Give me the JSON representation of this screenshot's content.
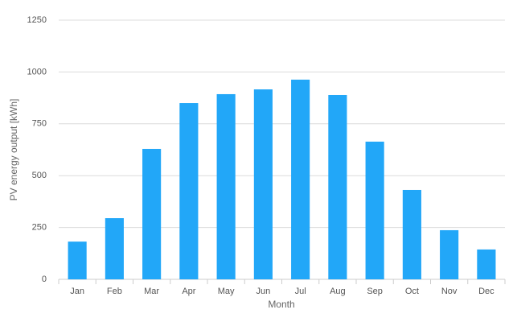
{
  "chart_data": {
    "type": "bar",
    "y_label": "PV energy output [kWh]",
    "x_label": "Month",
    "categories": [
      "Jan",
      "Feb",
      "Mar",
      "Apr",
      "May",
      "Jun",
      "Jul",
      "Aug",
      "Sep",
      "Oct",
      "Nov",
      "Dec"
    ],
    "values": [
      182,
      295,
      629,
      850,
      893,
      916,
      963,
      889,
      664,
      431,
      237,
      144
    ],
    "color": "#22a7f8",
    "ylim": [
      0,
      1250
    ],
    "yticks": [
      0,
      250,
      500,
      750,
      1000,
      1250
    ],
    "grid": true
  }
}
